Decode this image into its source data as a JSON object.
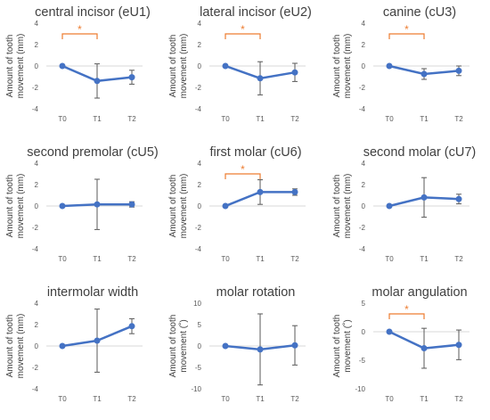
{
  "chart_data": [
    {
      "type": "line",
      "title": "central incisor (eU1)",
      "ylabel": "Amount of tooth movement (mm)",
      "categories": [
        "T0",
        "T1",
        "T2"
      ],
      "values": [
        0,
        -1.4,
        -1.05
      ],
      "errors": [
        0,
        1.6,
        0.65
      ],
      "ylim": [
        -4,
        4
      ],
      "yticks": [
        "4",
        "2",
        "0",
        "-2",
        "-4"
      ],
      "significance": {
        "from": "T0",
        "to": "T1",
        "label": "*"
      }
    },
    {
      "type": "line",
      "title": "lateral incisor (eU2)",
      "ylabel": "Amount of tooth movement (mm)",
      "categories": [
        "T0",
        "T1",
        "T2"
      ],
      "values": [
        0,
        -1.15,
        -0.6
      ],
      "errors": [
        0,
        1.55,
        0.85
      ],
      "ylim": [
        -4,
        4
      ],
      "yticks": [
        "4",
        "2",
        "0",
        "-2",
        "-4"
      ],
      "significance": {
        "from": "T0",
        "to": "T1",
        "label": "*"
      }
    },
    {
      "type": "line",
      "title": "canine (cU3)",
      "ylabel": "Amount of tooth movement (mm)",
      "categories": [
        "T0",
        "T1",
        "T2"
      ],
      "values": [
        0,
        -0.75,
        -0.45
      ],
      "errors": [
        0,
        0.5,
        0.45
      ],
      "ylim": [
        -4,
        4
      ],
      "yticks": [
        "4",
        "2",
        "0",
        "-2",
        "-4"
      ],
      "significance": {
        "from": "T0",
        "to": "T1",
        "label": "*"
      }
    },
    {
      "type": "line",
      "title": "second premolar (cU5)",
      "ylabel": "Amount of tooth movement (mm)",
      "categories": [
        "T0",
        "T1",
        "T2"
      ],
      "values": [
        0,
        0.15,
        0.15
      ],
      "errors": [
        0,
        2.35,
        0.25
      ],
      "ylim": [
        -4,
        4
      ],
      "yticks": [
        "4",
        "2",
        "0",
        "-2",
        "-4"
      ],
      "significance": null
    },
    {
      "type": "line",
      "title": "first molar (cU6)",
      "ylabel": "Amount of tooth movement (mm)",
      "categories": [
        "T0",
        "T1",
        "T2"
      ],
      "values": [
        0,
        1.3,
        1.3
      ],
      "errors": [
        0,
        1.15,
        0.3
      ],
      "ylim": [
        -4,
        4
      ],
      "yticks": [
        "4",
        "2",
        "0",
        "-2",
        "-4"
      ],
      "significance": {
        "from": "T0",
        "to": "T1",
        "label": "*"
      }
    },
    {
      "type": "line",
      "title": "second molar (cU7)",
      "ylabel": "Amount of tooth movement (mm)",
      "categories": [
        "T0",
        "T1",
        "T2"
      ],
      "values": [
        0,
        0.8,
        0.65
      ],
      "errors": [
        0,
        1.85,
        0.45
      ],
      "ylim": [
        -4,
        4
      ],
      "yticks": [
        "4",
        "2",
        "0",
        "-2",
        "-4"
      ],
      "significance": null
    },
    {
      "type": "line",
      "title": "intermolar width",
      "ylabel": "Amount of tooth movement (mm)",
      "categories": [
        "T0",
        "T1",
        "T2"
      ],
      "values": [
        0,
        0.5,
        1.85
      ],
      "errors": [
        0,
        2.95,
        0.7
      ],
      "ylim": [
        -4,
        4
      ],
      "yticks": [
        "4",
        "2",
        "0",
        "-2",
        "-4"
      ],
      "significance": null
    },
    {
      "type": "line",
      "title": "molar rotation",
      "ylabel": "Amount of tooth movement (˚)",
      "categories": [
        "T0",
        "T1",
        "T2"
      ],
      "values": [
        0,
        -0.8,
        0.15
      ],
      "errors": [
        0,
        8.3,
        4.6
      ],
      "ylim": [
        -10,
        10
      ],
      "yticks": [
        "10",
        "5",
        "0",
        "-5",
        "-10"
      ],
      "significance": null
    },
    {
      "type": "line",
      "title": "molar angulation",
      "ylabel": "Amount of tooth movement (˚)",
      "categories": [
        "T0",
        "T1",
        "T2"
      ],
      "values": [
        0,
        -2.9,
        -2.3
      ],
      "errors": [
        0,
        3.5,
        2.6
      ],
      "ylim": [
        -10,
        5
      ],
      "yticks": [
        "5",
        "0",
        "-5",
        "-10"
      ],
      "significance": {
        "from": "T0",
        "to": "T1",
        "label": "*"
      }
    }
  ],
  "colors": {
    "series": "#4472C4",
    "error_bar": "#595959",
    "axis": "#D9D9D9",
    "significance": "#ED7D31",
    "text": "#404040"
  }
}
